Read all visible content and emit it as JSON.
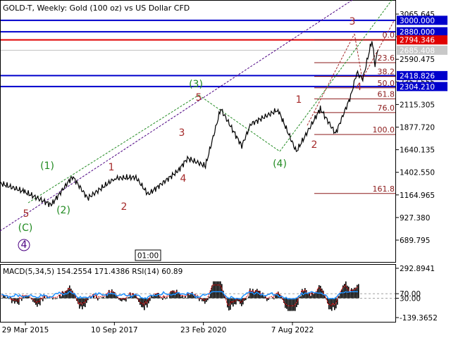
{
  "header": {
    "title": "GOLD-T, Weekly:  Gold (100 oz) vs US Dollar CFD"
  },
  "colors": {
    "price_line": "#000000",
    "level_blue": "#0000cc",
    "level_red": "#e00000",
    "wave_brown": "#a52a2a",
    "wave_green": "#228b22",
    "wave_purple": "#4b0082",
    "fib_line": "#8b1a1a",
    "macd_bar": "#000000",
    "rsi_line": "#1e90ff",
    "signal_line": "#e00000"
  },
  "price_axis": {
    "ticks": [
      "3065.645",
      "2827.895",
      "2590.475",
      "2352.555",
      "2115.305",
      "1877.720",
      "1640.135",
      "1402.550",
      "1164.965",
      "927.380",
      "689.795"
    ]
  },
  "levels": [
    {
      "label": "3000.000",
      "value": 3000.0,
      "color": "blue"
    },
    {
      "label": "2880.000",
      "value": 2880.0,
      "color": "blue"
    },
    {
      "label": "2794.346",
      "value": 2794.346,
      "color": "red"
    },
    {
      "label": "2685.408",
      "value": 2685.408,
      "color": "gray"
    },
    {
      "label": "2418.826",
      "value": 2418.826,
      "color": "blue"
    },
    {
      "label": "2304.210",
      "value": 2304.21,
      "color": "blue"
    }
  ],
  "fibonacci": [
    {
      "label": "0.0",
      "value": 2794
    },
    {
      "label": "23.6",
      "value": 2555
    },
    {
      "label": "38.2",
      "value": 2410
    },
    {
      "label": "50.0",
      "value": 2290
    },
    {
      "label": "61.8",
      "value": 2175
    },
    {
      "label": "76.0",
      "value": 2030
    },
    {
      "label": "100.0",
      "value": 1800
    },
    {
      "label": "161.8",
      "value": 1180
    }
  ],
  "wave_labels": [
    {
      "text": "(C)",
      "color": "green"
    },
    {
      "text": "4",
      "color": "purple",
      "circled": true
    },
    {
      "text": "5",
      "color": "brown"
    },
    {
      "text": "(1)",
      "color": "green"
    },
    {
      "text": "(2)",
      "color": "green"
    },
    {
      "text": "1",
      "color": "brown"
    },
    {
      "text": "2",
      "color": "brown"
    },
    {
      "text": "3",
      "color": "brown"
    },
    {
      "text": "4",
      "color": "brown"
    },
    {
      "text": "(3)",
      "color": "green"
    },
    {
      "text": "5",
      "color": "brown"
    },
    {
      "text": "(4)",
      "color": "green"
    },
    {
      "text": "1",
      "color": "brown"
    },
    {
      "text": "2",
      "color": "brown"
    },
    {
      "text": "3",
      "color": "brown"
    },
    {
      "text": "4",
      "color": "brown"
    }
  ],
  "time_marker": "01:00",
  "indicator": {
    "label": "MACD(5,34,5) 154.2554 171.4386 RSI(14) 60.89",
    "ticks": [
      "292.8941",
      "70.00",
      "30.00",
      "-139.3652"
    ]
  },
  "time_axis": {
    "ticks": [
      "29 Mar 2015",
      "10 Sep 2017",
      "23 Feb 2020",
      "7 Aug 2022"
    ]
  },
  "chart_data": {
    "type": "line",
    "title": "GOLD-T, Weekly:  Gold (100 oz) vs US Dollar CFD",
    "xlabel": "",
    "ylabel": "",
    "ylim": [
      570,
      3180
    ],
    "x": [
      "2014-06",
      "2015-03",
      "2015-12",
      "2016-07",
      "2016-12",
      "2017-09",
      "2018-04",
      "2018-08",
      "2019-06",
      "2019-09",
      "2020-03",
      "2020-08",
      "2021-03",
      "2021-06",
      "2022-03",
      "2022-09",
      "2023-05",
      "2023-10",
      "2024-03",
      "2024-05",
      "2024-07",
      "2024-10",
      "2024-11",
      "2024-12"
    ],
    "series": [
      {
        "name": "GOLD-T",
        "values": [
          1300,
          1200,
          1060,
          1360,
          1130,
          1340,
          1350,
          1170,
          1420,
          1550,
          1470,
          2070,
          1680,
          1910,
          2060,
          1620,
          2070,
          1810,
          2200,
          2450,
          2380,
          2794,
          2540,
          2685
        ]
      }
    ]
  }
}
